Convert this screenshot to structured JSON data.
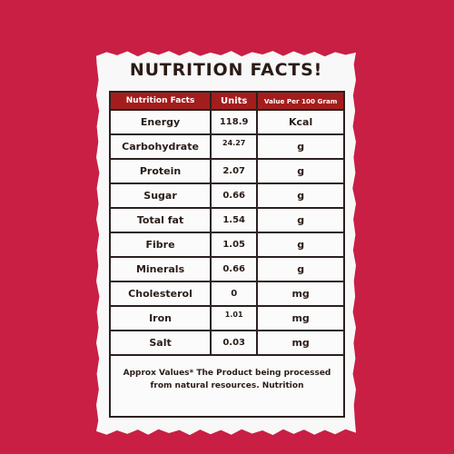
{
  "title": "NUTRITION FACTS!",
  "colors": {
    "background": "#c91f44",
    "card": "#f8f8f8",
    "header": "#a41d1d",
    "text": "#2a1d18"
  },
  "table": {
    "headers": [
      "Nutrition Facts",
      "Units",
      "Value Per 100 Gram"
    ],
    "rows": [
      {
        "name": "Energy",
        "value": "118.9",
        "unit": "Kcal"
      },
      {
        "name": "Carbohydrate",
        "value": "24.27",
        "unit": "g"
      },
      {
        "name": "Protein",
        "value": "2.07",
        "unit": "g"
      },
      {
        "name": "Sugar",
        "value": "0.66",
        "unit": "g"
      },
      {
        "name": "Total fat",
        "value": "1.54",
        "unit": "g"
      },
      {
        "name": "Fibre",
        "value": "1.05",
        "unit": "g"
      },
      {
        "name": "Minerals",
        "value": "0.66",
        "unit": "g"
      },
      {
        "name": "Cholesterol",
        "value": "0",
        "unit": "mg"
      },
      {
        "name": "Iron",
        "value": "1.01",
        "unit": "mg"
      },
      {
        "name": "Salt",
        "value": "0.03",
        "unit": "mg"
      }
    ],
    "footer": "Approx Values* The Product being processed from natural resources. Nutrition"
  }
}
